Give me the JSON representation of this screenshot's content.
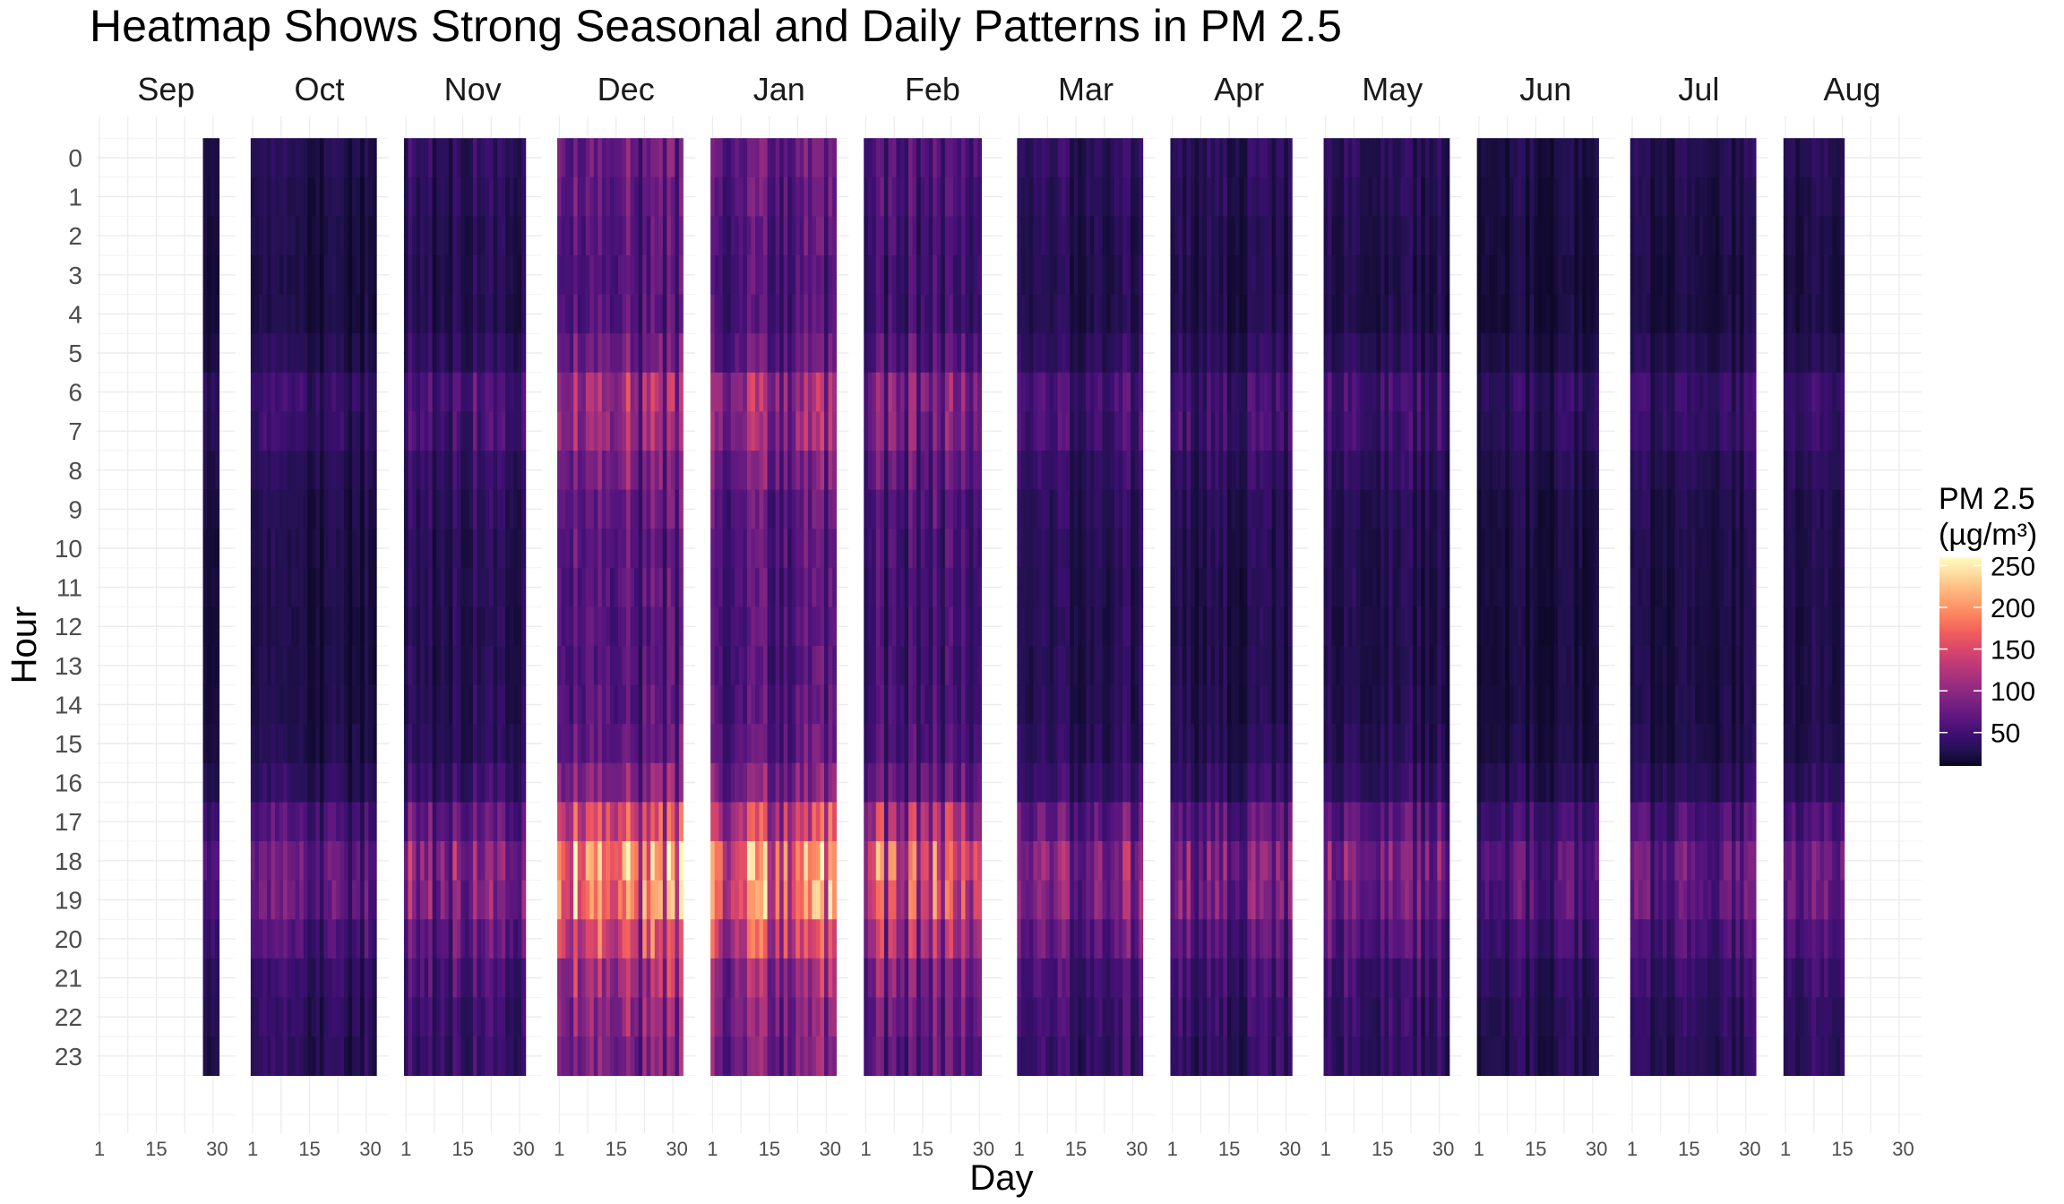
{
  "chart_data": {
    "type": "heatmap",
    "title": "Heatmap Shows Strong Seasonal and Daily Patterns in PM 2.5",
    "xlabel": "Day",
    "ylabel": "Hour",
    "x_ticks": [
      "1",
      "15",
      "30"
    ],
    "y_ticks": [
      "0",
      "1",
      "2",
      "3",
      "4",
      "5",
      "6",
      "7",
      "8",
      "9",
      "10",
      "11",
      "12",
      "13",
      "14",
      "15",
      "16",
      "17",
      "18",
      "19",
      "20",
      "21",
      "22",
      "23"
    ],
    "legend": {
      "title_line1": "PM 2.5",
      "title_line2": "(µg/m³)",
      "ticks": [
        "250",
        "200",
        "150",
        "100",
        "50"
      ],
      "tick_values": [
        250,
        200,
        150,
        100,
        50
      ],
      "range": [
        10,
        260
      ],
      "palette": "magma",
      "placement": "right"
    },
    "grid": true,
    "months": [
      {
        "name": "Sep",
        "start_day": 27,
        "end_day": 30,
        "level": 0.55
      },
      {
        "name": "Oct",
        "start_day": 1,
        "end_day": 31,
        "level": 0.7
      },
      {
        "name": "Nov",
        "start_day": 1,
        "end_day": 30,
        "level": 1.0
      },
      {
        "name": "Dec",
        "start_day": 1,
        "end_day": 31,
        "level": 1.9
      },
      {
        "name": "Jan",
        "start_day": 1,
        "end_day": 31,
        "level": 1.8
      },
      {
        "name": "Feb",
        "start_day": 1,
        "end_day": 29,
        "level": 1.5
      },
      {
        "name": "Mar",
        "start_day": 1,
        "end_day": 31,
        "level": 0.95
      },
      {
        "name": "Apr",
        "start_day": 1,
        "end_day": 30,
        "level": 0.85
      },
      {
        "name": "May",
        "start_day": 1,
        "end_day": 31,
        "level": 0.85
      },
      {
        "name": "Jun",
        "start_day": 1,
        "end_day": 30,
        "level": 0.65
      },
      {
        "name": "Jul",
        "start_day": 1,
        "end_day": 31,
        "level": 0.75
      },
      {
        "name": "Aug",
        "start_day": 1,
        "end_day": 15,
        "level": 0.75
      }
    ],
    "hourly_profile": [
      38,
      35,
      32,
      30,
      30,
      38,
      55,
      52,
      42,
      36,
      33,
      32,
      31,
      31,
      32,
      35,
      45,
      72,
      95,
      90,
      72,
      55,
      48,
      44
    ]
  }
}
